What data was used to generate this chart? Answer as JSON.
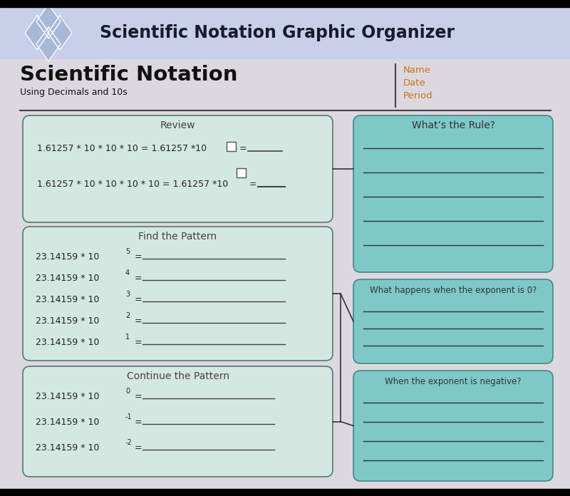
{
  "title": "Scientific Notation Graphic Organizer",
  "main_title": "Scientific Notation",
  "subtitle": "Using Decimals and 10s",
  "header_bg": "#c8cfe8",
  "body_bg": "#ddd8e0",
  "box_bg": "#d4e8e2",
  "right_box_bg": "#7ec8c8",
  "black_bar": "#000000",
  "name_date_period_color": "#c07818",
  "name_label": "Name",
  "date_label": "Date",
  "period_label": "Period",
  "review_title": "Review",
  "find_pattern_title": "Find the Pattern",
  "continue_pattern_title": "Continue the Pattern",
  "whats_rule_title": "What’s the Rule?",
  "exp0_title": "What happens when the exponent is 0?",
  "neg_exp_title": "When the exponent is negative?",
  "find_exponents": [
    "5",
    "4",
    "3",
    "2",
    "1"
  ],
  "continue_exponents": [
    "0",
    "-1",
    "-2"
  ],
  "figsize": [
    8.0,
    6.96
  ],
  "dpi": 100
}
